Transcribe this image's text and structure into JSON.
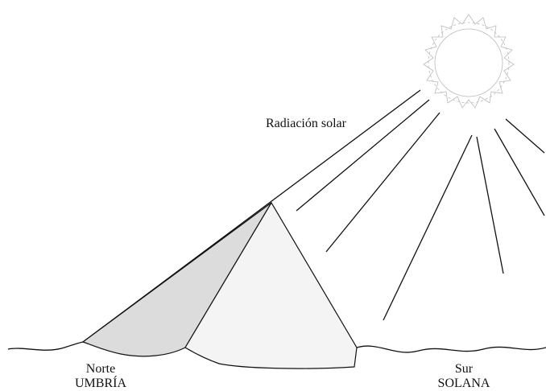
{
  "labels": {
    "radiation": "Radiación solar",
    "north": "Norte",
    "north_zone": "UMBRÍA",
    "south": "Sur",
    "south_zone": "SOLANA"
  }
}
